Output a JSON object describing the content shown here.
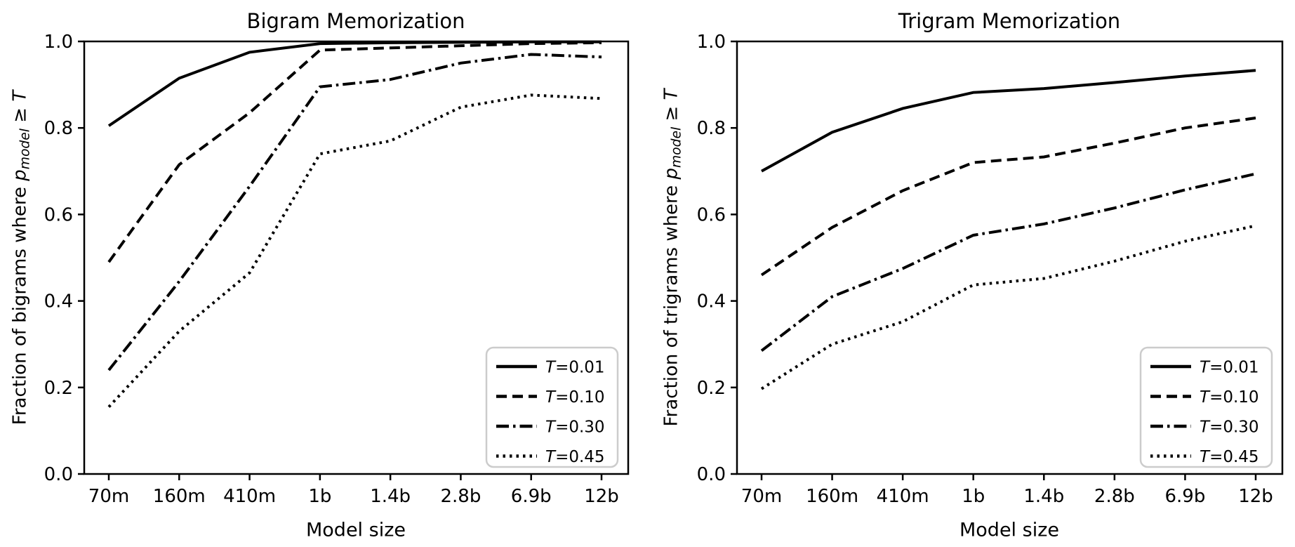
{
  "figure": {
    "background": "#ffffff",
    "line_color": "#000000",
    "legend_border_color": "#cccccc"
  },
  "chart_data": [
    {
      "type": "line",
      "title": "Bigram Memorization",
      "xlabel": "Model size",
      "ylabel": {
        "prefix": "Fraction of bigrams where ",
        "p": "p",
        "sub": "model",
        "rel": " ≥ ",
        "T": "T"
      },
      "categories": [
        "70m",
        "160m",
        "410m",
        "1b",
        "1.4b",
        "2.8b",
        "6.9b",
        "12b"
      ],
      "ylim": [
        0.0,
        1.0
      ],
      "yticklabels": [
        "0.0",
        "0.2",
        "0.4",
        "0.6",
        "0.8",
        "1.0"
      ],
      "grid": false,
      "legend_position": "lower right",
      "series": [
        {
          "name": "T=0.01",
          "dash": "solid",
          "values": [
            0.805,
            0.915,
            0.975,
            0.995,
            0.997,
            0.998,
            0.999,
            0.999
          ]
        },
        {
          "name": "T=0.10",
          "dash": "dashed",
          "values": [
            0.49,
            0.715,
            0.835,
            0.98,
            0.985,
            0.99,
            0.995,
            0.997
          ]
        },
        {
          "name": "T=0.30",
          "dash": "dashdot",
          "values": [
            0.24,
            0.445,
            0.665,
            0.895,
            0.912,
            0.95,
            0.97,
            0.964
          ]
        },
        {
          "name": "T=0.45",
          "dash": "dotted",
          "values": [
            0.155,
            0.33,
            0.465,
            0.74,
            0.77,
            0.848,
            0.876,
            0.868
          ]
        }
      ]
    },
    {
      "type": "line",
      "title": "Trigram Memorization",
      "xlabel": "Model size",
      "ylabel": {
        "prefix": "Fraction of trigrams where ",
        "p": "p",
        "sub": "model",
        "rel": " ≥ ",
        "T": "T"
      },
      "categories": [
        "70m",
        "160m",
        "410m",
        "1b",
        "1.4b",
        "2.8b",
        "6.9b",
        "12b"
      ],
      "ylim": [
        0.0,
        1.0
      ],
      "yticklabels": [
        "0.0",
        "0.2",
        "0.4",
        "0.6",
        "0.8",
        "1.0"
      ],
      "grid": false,
      "legend_position": "lower right",
      "series": [
        {
          "name": "T=0.01",
          "dash": "solid",
          "values": [
            0.7,
            0.79,
            0.845,
            0.882,
            0.891,
            0.905,
            0.92,
            0.933
          ]
        },
        {
          "name": "T=0.10",
          "dash": "dashed",
          "values": [
            0.46,
            0.57,
            0.655,
            0.72,
            0.733,
            0.765,
            0.8,
            0.823
          ]
        },
        {
          "name": "T=0.30",
          "dash": "dashdot",
          "values": [
            0.285,
            0.41,
            0.475,
            0.552,
            0.578,
            0.615,
            0.657,
            0.694
          ]
        },
        {
          "name": "T=0.45",
          "dash": "dotted",
          "values": [
            0.197,
            0.3,
            0.352,
            0.437,
            0.452,
            0.492,
            0.538,
            0.574
          ]
        }
      ]
    }
  ]
}
